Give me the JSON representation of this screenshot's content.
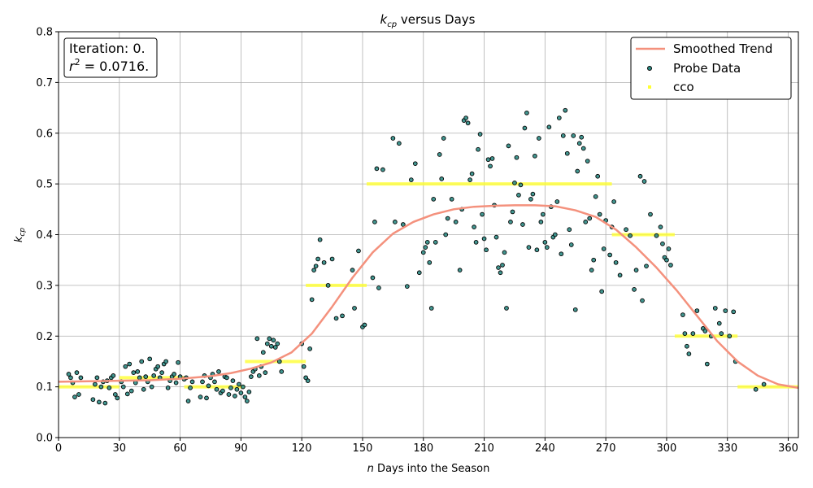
{
  "chart_data": {
    "type": "scatter",
    "title_main": "k",
    "title_sub": "cp",
    "title_rest": " versus Days",
    "xlabel_var": "n",
    "xlabel_rest": " Days into the Season",
    "ylabel_main": "k",
    "ylabel_sub": "cp",
    "xlim": [
      0,
      365
    ],
    "ylim": [
      0,
      0.8
    ],
    "xticks": [
      0,
      30,
      60,
      90,
      120,
      150,
      180,
      210,
      240,
      270,
      300,
      330,
      360
    ],
    "yticks": [
      0.0,
      0.1,
      0.2,
      0.3,
      0.4,
      0.5,
      0.6,
      0.7,
      0.8
    ],
    "grid": true,
    "legend_position": "top-right",
    "annotation": {
      "line1": "Iteration: 0.",
      "line2_pre": "r",
      "line2_sup": "2",
      "line2_post": " = 0.0716."
    },
    "colors": {
      "smoothed": "#f4917d",
      "probe_fill": "#2e8b84",
      "probe_edge": "#000000",
      "cco": "#ffff33"
    },
    "series": [
      {
        "name": "Smoothed Trend",
        "kind": "line",
        "x": [
          0,
          15,
          30,
          45,
          60,
          75,
          85,
          95,
          105,
          115,
          125,
          135,
          145,
          155,
          165,
          175,
          185,
          195,
          205,
          215,
          225,
          235,
          245,
          255,
          265,
          275,
          285,
          295,
          305,
          315,
          325,
          335,
          345,
          355,
          365
        ],
        "y": [
          0.11,
          0.111,
          0.112,
          0.113,
          0.116,
          0.121,
          0.127,
          0.136,
          0.148,
          0.168,
          0.205,
          0.258,
          0.315,
          0.365,
          0.402,
          0.425,
          0.44,
          0.45,
          0.455,
          0.457,
          0.458,
          0.458,
          0.456,
          0.448,
          0.435,
          0.41,
          0.375,
          0.335,
          0.29,
          0.24,
          0.19,
          0.15,
          0.122,
          0.105,
          0.098
        ]
      },
      {
        "name": "Probe Data",
        "kind": "scatter",
        "points": [
          [
            5,
            0.125
          ],
          [
            6,
            0.118
          ],
          [
            7,
            0.108
          ],
          [
            8,
            0.08
          ],
          [
            9,
            0.128
          ],
          [
            10,
            0.085
          ],
          [
            11,
            0.118
          ],
          [
            17,
            0.075
          ],
          [
            18,
            0.105
          ],
          [
            19,
            0.118
          ],
          [
            20,
            0.07
          ],
          [
            21,
            0.1
          ],
          [
            22,
            0.11
          ],
          [
            23,
            0.068
          ],
          [
            24,
            0.112
          ],
          [
            25,
            0.098
          ],
          [
            26,
            0.118
          ],
          [
            27,
            0.122
          ],
          [
            28,
            0.085
          ],
          [
            29,
            0.078
          ],
          [
            31,
            0.11
          ],
          [
            32,
            0.1
          ],
          [
            33,
            0.14
          ],
          [
            34,
            0.086
          ],
          [
            35,
            0.145
          ],
          [
            36,
            0.092
          ],
          [
            37,
            0.128
          ],
          [
            38,
            0.108
          ],
          [
            39,
            0.13
          ],
          [
            40,
            0.118
          ],
          [
            41,
            0.15
          ],
          [
            42,
            0.095
          ],
          [
            43,
            0.12
          ],
          [
            44,
            0.11
          ],
          [
            45,
            0.155
          ],
          [
            46,
            0.1
          ],
          [
            47,
            0.122
          ],
          [
            48,
            0.135
          ],
          [
            49,
            0.14
          ],
          [
            50,
            0.118
          ],
          [
            51,
            0.128
          ],
          [
            52,
            0.145
          ],
          [
            53,
            0.15
          ],
          [
            54,
            0.098
          ],
          [
            55,
            0.112
          ],
          [
            56,
            0.12
          ],
          [
            57,
            0.125
          ],
          [
            58,
            0.108
          ],
          [
            59,
            0.148
          ],
          [
            60,
            0.12
          ],
          [
            62,
            0.115
          ],
          [
            63,
            0.118
          ],
          [
            64,
            0.072
          ],
          [
            65,
            0.098
          ],
          [
            66,
            0.11
          ],
          [
            70,
            0.08
          ],
          [
            71,
            0.11
          ],
          [
            72,
            0.122
          ],
          [
            73,
            0.078
          ],
          [
            74,
            0.102
          ],
          [
            75,
            0.118
          ],
          [
            76,
            0.125
          ],
          [
            77,
            0.11
          ],
          [
            78,
            0.095
          ],
          [
            79,
            0.13
          ],
          [
            80,
            0.088
          ],
          [
            81,
            0.092
          ],
          [
            82,
            0.12
          ],
          [
            83,
            0.118
          ],
          [
            84,
            0.085
          ],
          [
            85,
            0.098
          ],
          [
            86,
            0.112
          ],
          [
            87,
            0.082
          ],
          [
            88,
            0.095
          ],
          [
            89,
            0.105
          ],
          [
            90,
            0.088
          ],
          [
            91,
            0.1
          ],
          [
            92,
            0.08
          ],
          [
            93,
            0.072
          ],
          [
            94,
            0.09
          ],
          [
            95,
            0.12
          ],
          [
            96,
            0.13
          ],
          [
            97,
            0.135
          ],
          [
            98,
            0.195
          ],
          [
            99,
            0.122
          ],
          [
            100,
            0.14
          ],
          [
            101,
            0.168
          ],
          [
            102,
            0.128
          ],
          [
            103,
            0.185
          ],
          [
            104,
            0.195
          ],
          [
            105,
            0.18
          ],
          [
            106,
            0.192
          ],
          [
            107,
            0.178
          ],
          [
            108,
            0.185
          ],
          [
            109,
            0.15
          ],
          [
            110,
            0.13
          ],
          [
            120,
            0.185
          ],
          [
            121,
            0.14
          ],
          [
            122,
            0.118
          ],
          [
            123,
            0.112
          ],
          [
            124,
            0.175
          ],
          [
            125,
            0.272
          ],
          [
            126,
            0.33
          ],
          [
            127,
            0.338
          ],
          [
            128,
            0.352
          ],
          [
            129,
            0.39
          ],
          [
            131,
            0.345
          ],
          [
            133,
            0.3
          ],
          [
            135,
            0.352
          ],
          [
            137,
            0.235
          ],
          [
            140,
            0.24
          ],
          [
            145,
            0.33
          ],
          [
            146,
            0.255
          ],
          [
            148,
            0.368
          ],
          [
            150,
            0.218
          ],
          [
            151,
            0.222
          ],
          [
            155,
            0.315
          ],
          [
            156,
            0.425
          ],
          [
            157,
            0.53
          ],
          [
            158,
            0.295
          ],
          [
            160,
            0.528
          ],
          [
            165,
            0.59
          ],
          [
            166,
            0.425
          ],
          [
            168,
            0.58
          ],
          [
            170,
            0.42
          ],
          [
            172,
            0.298
          ],
          [
            174,
            0.508
          ],
          [
            176,
            0.54
          ],
          [
            178,
            0.325
          ],
          [
            180,
            0.365
          ],
          [
            181,
            0.375
          ],
          [
            182,
            0.385
          ],
          [
            183,
            0.345
          ],
          [
            184,
            0.255
          ],
          [
            185,
            0.47
          ],
          [
            186,
            0.385
          ],
          [
            188,
            0.558
          ],
          [
            189,
            0.51
          ],
          [
            190,
            0.59
          ],
          [
            191,
            0.4
          ],
          [
            192,
            0.432
          ],
          [
            194,
            0.47
          ],
          [
            196,
            0.425
          ],
          [
            198,
            0.33
          ],
          [
            199,
            0.45
          ],
          [
            200,
            0.625
          ],
          [
            201,
            0.63
          ],
          [
            202,
            0.62
          ],
          [
            203,
            0.508
          ],
          [
            204,
            0.52
          ],
          [
            205,
            0.415
          ],
          [
            206,
            0.385
          ],
          [
            207,
            0.568
          ],
          [
            208,
            0.598
          ],
          [
            209,
            0.44
          ],
          [
            210,
            0.392
          ],
          [
            211,
            0.37
          ],
          [
            212,
            0.548
          ],
          [
            213,
            0.535
          ],
          [
            214,
            0.55
          ],
          [
            215,
            0.458
          ],
          [
            216,
            0.395
          ],
          [
            217,
            0.335
          ],
          [
            218,
            0.325
          ],
          [
            219,
            0.34
          ],
          [
            220,
            0.365
          ],
          [
            221,
            0.255
          ],
          [
            222,
            0.575
          ],
          [
            223,
            0.425
          ],
          [
            224,
            0.445
          ],
          [
            225,
            0.502
          ],
          [
            226,
            0.552
          ],
          [
            227,
            0.478
          ],
          [
            228,
            0.498
          ],
          [
            229,
            0.42
          ],
          [
            230,
            0.61
          ],
          [
            231,
            0.64
          ],
          [
            232,
            0.375
          ],
          [
            233,
            0.47
          ],
          [
            234,
            0.48
          ],
          [
            235,
            0.555
          ],
          [
            236,
            0.37
          ],
          [
            237,
            0.59
          ],
          [
            238,
            0.425
          ],
          [
            239,
            0.44
          ],
          [
            240,
            0.385
          ],
          [
            241,
            0.375
          ],
          [
            242,
            0.612
          ],
          [
            243,
            0.455
          ],
          [
            244,
            0.395
          ],
          [
            245,
            0.4
          ],
          [
            246,
            0.465
          ],
          [
            247,
            0.63
          ],
          [
            248,
            0.362
          ],
          [
            249,
            0.595
          ],
          [
            250,
            0.645
          ],
          [
            251,
            0.56
          ],
          [
            252,
            0.41
          ],
          [
            253,
            0.38
          ],
          [
            254,
            0.595
          ],
          [
            255,
            0.252
          ],
          [
            256,
            0.525
          ],
          [
            257,
            0.58
          ],
          [
            258,
            0.592
          ],
          [
            259,
            0.57
          ],
          [
            260,
            0.425
          ],
          [
            261,
            0.545
          ],
          [
            262,
            0.432
          ],
          [
            263,
            0.33
          ],
          [
            264,
            0.35
          ],
          [
            265,
            0.475
          ],
          [
            266,
            0.515
          ],
          [
            267,
            0.44
          ],
          [
            268,
            0.288
          ],
          [
            269,
            0.372
          ],
          [
            270,
            0.428
          ],
          [
            272,
            0.36
          ],
          [
            273,
            0.415
          ],
          [
            274,
            0.465
          ],
          [
            275,
            0.345
          ],
          [
            277,
            0.32
          ],
          [
            280,
            0.41
          ],
          [
            282,
            0.398
          ],
          [
            284,
            0.292
          ],
          [
            285,
            0.33
          ],
          [
            287,
            0.515
          ],
          [
            288,
            0.27
          ],
          [
            289,
            0.505
          ],
          [
            290,
            0.338
          ],
          [
            292,
            0.44
          ],
          [
            295,
            0.398
          ],
          [
            297,
            0.415
          ],
          [
            298,
            0.382
          ],
          [
            299,
            0.355
          ],
          [
            300,
            0.35
          ],
          [
            301,
            0.372
          ],
          [
            302,
            0.34
          ],
          [
            308,
            0.242
          ],
          [
            309,
            0.205
          ],
          [
            310,
            0.18
          ],
          [
            311,
            0.165
          ],
          [
            313,
            0.205
          ],
          [
            315,
            0.25
          ],
          [
            318,
            0.215
          ],
          [
            319,
            0.21
          ],
          [
            320,
            0.145
          ],
          [
            322,
            0.2
          ],
          [
            324,
            0.255
          ],
          [
            326,
            0.225
          ],
          [
            327,
            0.205
          ],
          [
            329,
            0.25
          ],
          [
            331,
            0.2
          ],
          [
            333,
            0.248
          ],
          [
            334,
            0.15
          ],
          [
            344,
            0.095
          ],
          [
            348,
            0.105
          ]
        ]
      },
      {
        "name": "cco",
        "kind": "step",
        "segments": [
          [
            0,
            30,
            0.1
          ],
          [
            30,
            62,
            0.118
          ],
          [
            62,
            92,
            0.1
          ],
          [
            92,
            122,
            0.15
          ],
          [
            122,
            152,
            0.3
          ],
          [
            152,
            273,
            0.5
          ],
          [
            273,
            304,
            0.4
          ],
          [
            304,
            335,
            0.2
          ],
          [
            335,
            365,
            0.1
          ]
        ]
      }
    ]
  }
}
